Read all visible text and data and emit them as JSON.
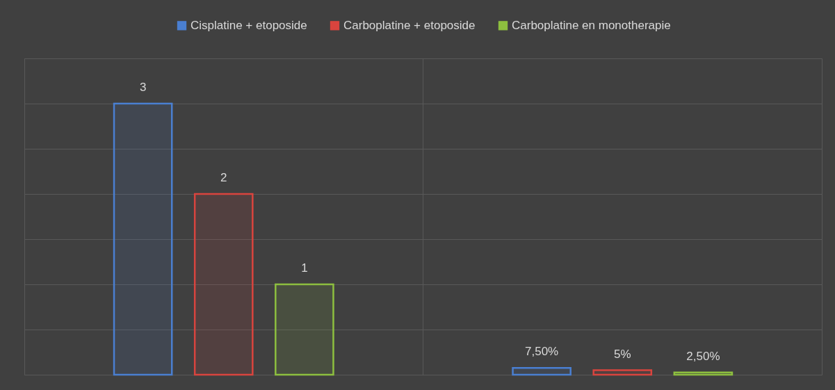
{
  "chart_data": {
    "type": "bar",
    "categories": [
      null,
      null
    ],
    "series": [
      {
        "name": "Cisplatine + etoposide",
        "color": "#4a7fd1",
        "values": [
          3,
          0.075
        ],
        "value_labels": [
          "3",
          "7,50%"
        ]
      },
      {
        "name": "Carboplatine + etoposide",
        "color": "#d9443e",
        "values": [
          2,
          0.05
        ],
        "value_labels": [
          "2",
          "5%"
        ]
      },
      {
        "name": "Carboplatine en monotherapie",
        "color": "#8dbf3f",
        "values": [
          1,
          0.025
        ],
        "value_labels": [
          "1",
          "2,50%"
        ]
      }
    ],
    "ylim": [
      0,
      3.5
    ],
    "yticks": [
      {
        "value": 0,
        "label": null
      },
      {
        "value": 0.5,
        "label": null
      },
      {
        "value": 1,
        "label": null
      },
      {
        "value": 1.5,
        "label": null
      },
      {
        "value": 2,
        "label": null
      },
      {
        "value": 2.5,
        "label": null
      },
      {
        "value": 3,
        "label": null
      },
      {
        "value": 3.5,
        "label": null
      }
    ],
    "grid": true,
    "legend": "top",
    "tick_labels": false
  }
}
